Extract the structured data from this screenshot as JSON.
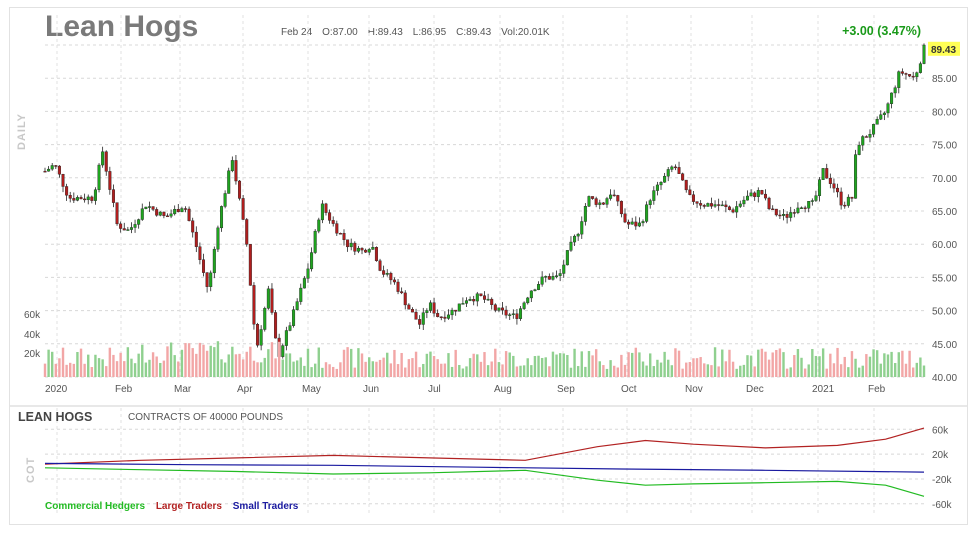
{
  "title": "Lean Hogs",
  "ohlc": {
    "date": "Feb 24",
    "open": "O:87.00",
    "high": "H:89.43",
    "low": "L:86.95",
    "close": "C:89.43",
    "volume": "Vol:20.01K"
  },
  "change": "+3.00 (3.47%)",
  "side_label": "DAILY",
  "cot_side_label": "COT",
  "colors": {
    "up": "#1fa51f",
    "down": "#b01e1e",
    "vol_up": "#8fd08f",
    "vol_down": "#f2a6a6",
    "commercial": "#22bb22",
    "large": "#b22222",
    "small": "#1a1aa0",
    "price_tag_bg": "#ffff55"
  },
  "chart_data": [
    {
      "type": "candlestick",
      "title": "Lean Hogs",
      "x_tick_labels": [
        "2020",
        "Feb",
        "Mar",
        "Apr",
        "May",
        "Jun",
        "Jul",
        "Aug",
        "Sep",
        "Oct",
        "Nov",
        "Dec",
        "2021",
        "Feb"
      ],
      "y_tick_labels": [
        "40.00",
        "45.00",
        "50.00",
        "55.00",
        "60.00",
        "65.00",
        "70.00",
        "75.00",
        "80.00",
        "85.00"
      ],
      "ylim": [
        40,
        90
      ],
      "last_price_label": "89.43",
      "volume_tick_labels": [
        "20k",
        "40k",
        "60k"
      ],
      "grid": true,
      "series_anchors": [
        {
          "t": 0,
          "p": 71
        },
        {
          "t": 4,
          "p": 72
        },
        {
          "t": 10,
          "p": 67
        },
        {
          "t": 20,
          "p": 67
        },
        {
          "t": 24,
          "p": 74
        },
        {
          "t": 30,
          "p": 63
        },
        {
          "t": 35,
          "p": 62
        },
        {
          "t": 42,
          "p": 66
        },
        {
          "t": 50,
          "p": 64
        },
        {
          "t": 58,
          "p": 66
        },
        {
          "t": 62,
          "p": 61
        },
        {
          "t": 68,
          "p": 53
        },
        {
          "t": 72,
          "p": 63
        },
        {
          "t": 78,
          "p": 73
        },
        {
          "t": 84,
          "p": 60
        },
        {
          "t": 88,
          "p": 44
        },
        {
          "t": 93,
          "p": 53
        },
        {
          "t": 97,
          "p": 43
        },
        {
          "t": 103,
          "p": 49
        },
        {
          "t": 110,
          "p": 57
        },
        {
          "t": 115,
          "p": 66
        },
        {
          "t": 120,
          "p": 63
        },
        {
          "t": 126,
          "p": 60
        },
        {
          "t": 132,
          "p": 59
        },
        {
          "t": 136,
          "p": 60
        },
        {
          "t": 140,
          "p": 56
        },
        {
          "t": 146,
          "p": 54
        },
        {
          "t": 152,
          "p": 50
        },
        {
          "t": 156,
          "p": 48
        },
        {
          "t": 160,
          "p": 51
        },
        {
          "t": 164,
          "p": 49
        },
        {
          "t": 170,
          "p": 50
        },
        {
          "t": 176,
          "p": 52
        },
        {
          "t": 182,
          "p": 52
        },
        {
          "t": 188,
          "p": 50
        },
        {
          "t": 196,
          "p": 49
        },
        {
          "t": 202,
          "p": 53
        },
        {
          "t": 208,
          "p": 55
        },
        {
          "t": 214,
          "p": 55
        },
        {
          "t": 218,
          "p": 59
        },
        {
          "t": 222,
          "p": 62
        },
        {
          "t": 226,
          "p": 67
        },
        {
          "t": 232,
          "p": 66
        },
        {
          "t": 236,
          "p": 68
        },
        {
          "t": 242,
          "p": 63
        },
        {
          "t": 248,
          "p": 63
        },
        {
          "t": 252,
          "p": 67
        },
        {
          "t": 258,
          "p": 70
        },
        {
          "t": 262,
          "p": 72
        },
        {
          "t": 268,
          "p": 67
        },
        {
          "t": 274,
          "p": 66
        },
        {
          "t": 280,
          "p": 66
        },
        {
          "t": 286,
          "p": 65
        },
        {
          "t": 292,
          "p": 67
        },
        {
          "t": 298,
          "p": 68
        },
        {
          "t": 302,
          "p": 65
        },
        {
          "t": 308,
          "p": 64
        },
        {
          "t": 314,
          "p": 66
        },
        {
          "t": 320,
          "p": 66
        },
        {
          "t": 324,
          "p": 71
        },
        {
          "t": 328,
          "p": 69
        },
        {
          "t": 332,
          "p": 66
        },
        {
          "t": 336,
          "p": 67
        },
        {
          "t": 338,
          "p": 75
        },
        {
          "t": 344,
          "p": 77
        },
        {
          "t": 350,
          "p": 80
        },
        {
          "t": 356,
          "p": 86
        },
        {
          "t": 362,
          "p": 85
        },
        {
          "t": 366,
          "p": 89.43
        }
      ]
    },
    {
      "type": "line",
      "title": "LEAN HOGS",
      "subtitle": "CONTRACTS OF 40000 POUNDS",
      "y_tick_labels": [
        "60k",
        "20k",
        "-20k",
        "-60k"
      ],
      "ylim": [
        -70,
        75
      ],
      "series": [
        {
          "name": "Commercial Hedgers",
          "points": [
            [
              0,
              -2
            ],
            [
              40,
              -5
            ],
            [
              80,
              -8
            ],
            [
              120,
              -12
            ],
            [
              160,
              -10
            ],
            [
              200,
              -6
            ],
            [
              230,
              -22
            ],
            [
              250,
              -30
            ],
            [
              270,
              -28
            ],
            [
              300,
              -26
            ],
            [
              330,
              -24
            ],
            [
              350,
              -30
            ],
            [
              366,
              -48
            ]
          ]
        },
        {
          "name": "Large Traders",
          "points": [
            [
              0,
              4
            ],
            [
              40,
              10
            ],
            [
              80,
              14
            ],
            [
              120,
              18
            ],
            [
              160,
              14
            ],
            [
              200,
              10
            ],
            [
              230,
              32
            ],
            [
              250,
              42
            ],
            [
              270,
              36
            ],
            [
              300,
              30
            ],
            [
              330,
              34
            ],
            [
              350,
              44
            ],
            [
              366,
              62
            ]
          ]
        },
        {
          "name": "Small Traders",
          "points": [
            [
              0,
              5
            ],
            [
              60,
              3
            ],
            [
              120,
              2
            ],
            [
              180,
              -1
            ],
            [
              240,
              -4
            ],
            [
              300,
              -6
            ],
            [
              366,
              -9
            ]
          ]
        }
      ]
    }
  ]
}
